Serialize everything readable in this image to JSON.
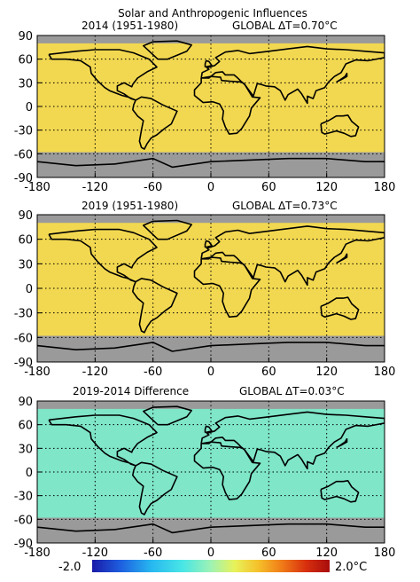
{
  "figure": {
    "title": "Solar and Anthropogenic Influences"
  },
  "panels": [
    {
      "label": "2014 (1951-1980)",
      "global": "GLOBAL ΔT=0.70°C",
      "kind": "anomaly",
      "year": 2014
    },
    {
      "label": "2019 (1951-1980)",
      "global": "GLOBAL ΔT=0.73°C",
      "kind": "anomaly",
      "year": 2019
    },
    {
      "label": "2019-2014 Difference",
      "global": "GLOBAL ΔT=0.03°C",
      "kind": "difference"
    }
  ],
  "axes": {
    "lon_ticks": [
      "-180",
      "-120",
      "-60",
      "0",
      "60",
      "120",
      "180"
    ],
    "lat_ticks": [
      "90",
      "60",
      "30",
      "0",
      "-30",
      "-60",
      "-90"
    ],
    "lon_range": [
      -180,
      180
    ],
    "lat_range": [
      -90,
      90
    ]
  },
  "colorbar": {
    "min_label": "-2.0",
    "max_label": "2.0°C",
    "range": [
      -2.0,
      2.0
    ],
    "colors": [
      "#1a1aa8",
      "#1e5fe0",
      "#27b8f0",
      "#48e6e6",
      "#9ef2b4",
      "#e8f25a",
      "#f5c02a",
      "#f07a18",
      "#d8300e",
      "#a80c0c"
    ]
  },
  "map_colors": {
    "no_data": "#9a9a9a",
    "zero": "#7fe6c8"
  }
}
